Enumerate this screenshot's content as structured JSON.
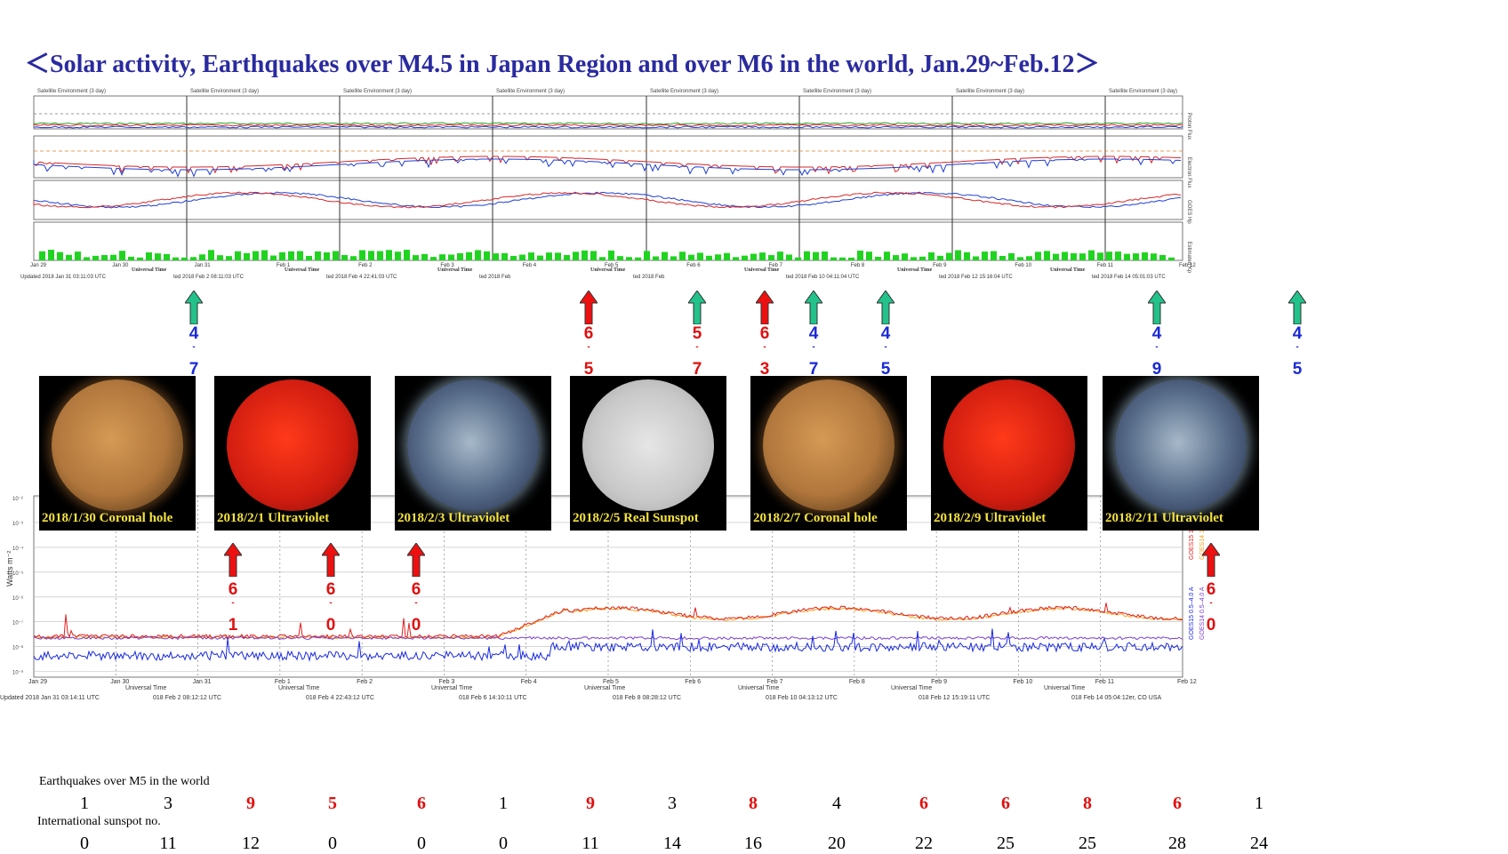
{
  "title": "＜Solar activity, Earthquakes over M4.5 in Japan Region and over M6 in the world, Jan.29~Feb.12＞",
  "top_panels": {
    "panel_title": "Satellite Environment (3 day)",
    "date_ticks": [
      "Jan 29",
      "Jan 30",
      "Jan 31",
      "Feb 1",
      "Feb 2",
      "Feb 3",
      "Feb 4",
      "Feb 5",
      "Feb 6",
      "Feb 7",
      "Feb 8",
      "Feb 9",
      "Feb 10",
      "Feb 11",
      "Feb 12"
    ],
    "updated_labels": [
      "Updated 2018 Jan 31 03:11:03 UTC",
      "ted 2018 Feb  2 08:11:03 UTC",
      "ted 2018 Feb  4 22:41:03 UTC",
      "ted 2018 Feb",
      "ted 2018 Feb",
      "ted 2018 Feb 10 04:11:04 UTC",
      "ted 2018 Feb 12 15:16:04 UTC",
      "ted 2018 Feb 14 05:01:03 UTC"
    ],
    "xlabel": "Universal Time",
    "right_labels": [
      "Proton Flux",
      "Electron Flux",
      "GOES Hp",
      "Estimated Kp"
    ]
  },
  "top_arrows": [
    {
      "color": "green",
      "mag": "4.7",
      "mag_color": "#1a2ad4"
    },
    {
      "color": "red",
      "mag": "6.5",
      "mag_color": "#e01010"
    },
    {
      "color": "green",
      "mag": "5.7",
      "mag_color": "#e01010"
    },
    {
      "color": "red",
      "mag": "6.3",
      "mag_color": "#e01010"
    },
    {
      "color": "green",
      "mag": "4.7",
      "mag_color": "#1a2ad4"
    },
    {
      "color": "green",
      "mag": "4.5",
      "mag_color": "#1a2ad4"
    },
    {
      "color": "green",
      "mag": "4.9",
      "mag_color": "#1a2ad4"
    },
    {
      "color": "green",
      "mag": "4.5",
      "mag_color": "#1a2ad4"
    }
  ],
  "sun_images": [
    {
      "caption": "2018/1/30 Coronal hole",
      "kind": "coronal"
    },
    {
      "caption": "2018/2/1 Ultraviolet",
      "kind": "red"
    },
    {
      "caption": "2018/2/3 Ultraviolet",
      "kind": "blue"
    },
    {
      "caption": "2018/2/5 Real Sunspot",
      "kind": "white"
    },
    {
      "caption": "2018/2/7 Coronal hole",
      "kind": "coronal"
    },
    {
      "caption": "2018/2/9 Ultraviolet",
      "kind": "red"
    },
    {
      "caption": "2018/2/11 Ultraviolet",
      "kind": "blue"
    }
  ],
  "xray_arrows": [
    {
      "mag": "6.1"
    },
    {
      "mag": "6.0"
    },
    {
      "mag": "6.0"
    },
    {
      "mag": "6.0"
    }
  ],
  "xray": {
    "ylabel": "Watts m⁻²",
    "legend": [
      "GOES15 1.0–8.0 A",
      "GOES14 1.0–8.0 A",
      "GOES15 0.5–4.0 A",
      "GOES14 0.5–4.0 A"
    ],
    "xlabel": "Universal Time",
    "updated_labels": [
      "Updated 2018 Jan 31 03:14:11 UTC",
      "018 Feb  2 08:12:12 UTC",
      "018 Feb  4 22:43:12 UTC",
      "018 Feb  6 14:10:11 UTC",
      "018 Feb  8 08:28:12 UTC",
      "018 Feb 10 04:13:12 UTC",
      "018 Feb 12 15:19:11 UTC",
      "018 Feb 14 05:04:12er, CO USA"
    ],
    "yticks": [
      "10⁻²",
      "10⁻³",
      "10⁻⁴",
      "10⁻⁵",
      "10⁻⁶",
      "10⁻⁷",
      "10⁻⁸",
      "10⁻⁹"
    ]
  },
  "chart_data": {
    "type": "table",
    "categories": [
      "Jan 29",
      "Jan 30",
      "Jan 31",
      "Feb 1",
      "Feb 2",
      "Feb 3",
      "Feb 4",
      "Feb 5",
      "Feb 6",
      "Feb 7",
      "Feb 8",
      "Feb 9",
      "Feb 10",
      "Feb 11",
      "Feb 12"
    ],
    "series": [
      {
        "name": "Earthquakes over M5 in the world",
        "values": [
          1,
          3,
          9,
          5,
          6,
          1,
          9,
          3,
          8,
          4,
          6,
          6,
          8,
          6,
          1
        ]
      },
      {
        "name": "International sunspot no.",
        "values": [
          0,
          11,
          12,
          0,
          0,
          0,
          11,
          14,
          16,
          20,
          22,
          25,
          25,
          28,
          24
        ]
      }
    ],
    "highlight_threshold": 5,
    "highlight_color": "#e01010"
  },
  "bottom": {
    "eq_label": "Earthquakes over M5 in the world",
    "sunspot_label": "International sunspot no."
  }
}
